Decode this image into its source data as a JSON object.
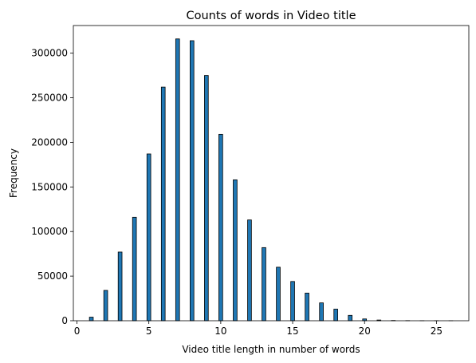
{
  "chart_data": {
    "type": "bar",
    "title": "Counts of words in Video title",
    "xlabel": "Video title length in number of words",
    "ylabel": "Frequency",
    "xlim": [
      -0.25,
      27.25
    ],
    "ylim": [
      0,
      331000
    ],
    "x_ticks": [
      0,
      5,
      10,
      15,
      20,
      25
    ],
    "x_tick_labels": [
      "0",
      "5",
      "10",
      "15",
      "20",
      "25"
    ],
    "y_ticks": [
      0,
      50000,
      100000,
      150000,
      200000,
      250000,
      300000
    ],
    "y_tick_labels": [
      "0",
      "50000",
      "100000",
      "150000",
      "200000",
      "250000",
      "300000"
    ],
    "bar_color": "#1f77b4",
    "edge_color": "#000000",
    "x": [
      1,
      2,
      3,
      4,
      5,
      6,
      7,
      8,
      9,
      10,
      11,
      12,
      13,
      14,
      15,
      16,
      17,
      18,
      19,
      20,
      21,
      22,
      23,
      24,
      25,
      26
    ],
    "values": [
      4000,
      34000,
      77000,
      116000,
      187000,
      262000,
      316000,
      314000,
      275000,
      209000,
      158000,
      113000,
      82000,
      60000,
      44000,
      31000,
      20000,
      13000,
      6000,
      2000,
      800,
      300,
      150,
      80,
      40,
      20
    ],
    "grid": false,
    "legend": "none"
  }
}
